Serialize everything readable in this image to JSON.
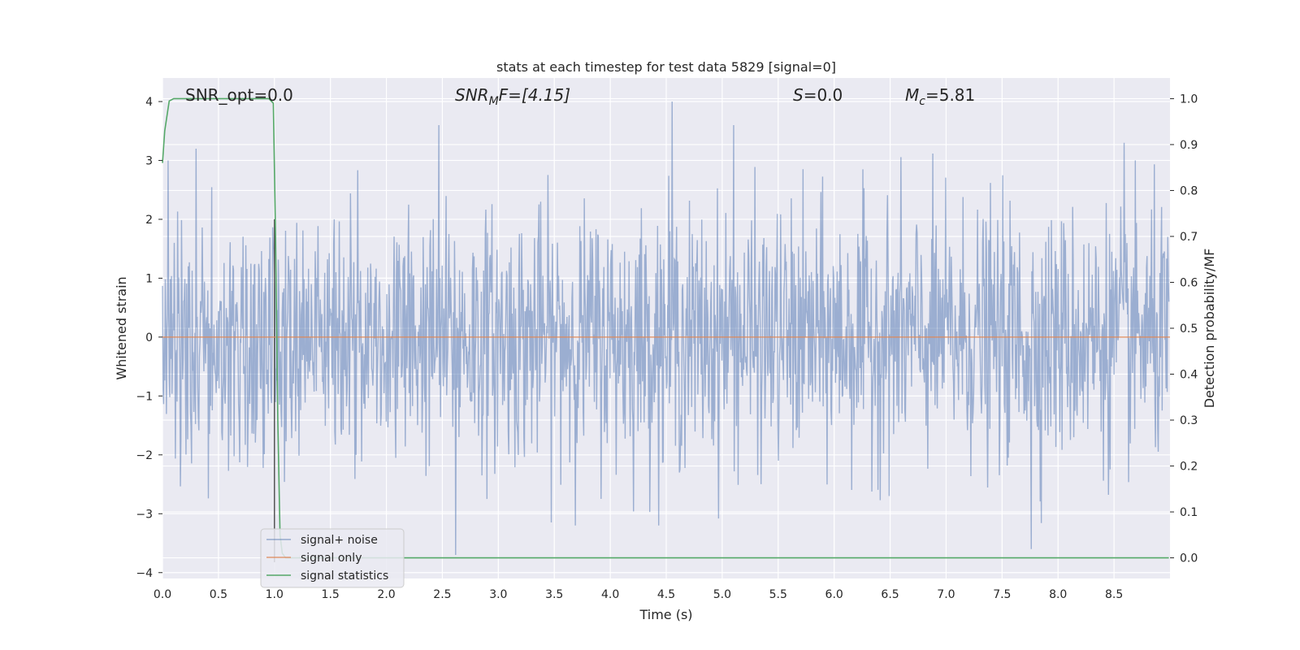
{
  "chart_data": {
    "type": "line",
    "title": "stats at each timestep for test data 5829 [signal=0]",
    "xlabel": "Time (s)",
    "ylabel": "Whitened strain",
    "ylabel_right": "Detection probability/MF",
    "xlim": [
      0.0,
      9.0
    ],
    "ylim": [
      -4.1,
      4.4
    ],
    "ylim_right": [
      -0.045,
      1.045
    ],
    "x_ticks": [
      "0.0",
      "0.5",
      "1.0",
      "1.5",
      "2.0",
      "2.5",
      "3.0",
      "3.5",
      "4.0",
      "4.5",
      "5.0",
      "5.5",
      "6.0",
      "6.5",
      "7.0",
      "7.5",
      "8.0",
      "8.5"
    ],
    "y_ticks": [
      "4",
      "3",
      "2",
      "1",
      "0",
      "−1",
      "−2",
      "−3",
      "−4"
    ],
    "y_ticks_right": [
      "1.0",
      "0.9",
      "0.8",
      "0.7",
      "0.6",
      "0.5",
      "0.4",
      "0.3",
      "0.2",
      "0.1",
      "0.0"
    ],
    "grid": true,
    "legend_position": "lower-left",
    "annotations": {
      "snr_opt": "SNR_opt=0.0",
      "snr_mf_main": "SNR",
      "snr_mf_sub": "M",
      "snr_mf_rest": "F=[4.15]",
      "s_main": "S",
      "s_rest": "=0.0",
      "mc_main": "M",
      "mc_sub": "c",
      "mc_rest": "=5.81"
    },
    "marker_line_x": 1.0,
    "series": [
      {
        "name": "signal+ noise",
        "color": "#4c72b0",
        "description_values": "noise amplitude ~N(0,1), peaks up to 4.0 near t=4.56 and down to -3.7 near t=2.62",
        "sample_count": 1800,
        "peaks": [
          [
            0.05,
            3.0
          ],
          [
            0.3,
            3.2
          ],
          [
            2.47,
            3.6
          ],
          [
            2.62,
            -3.7
          ],
          [
            4.56,
            4.0
          ],
          [
            5.11,
            3.6
          ],
          [
            7.77,
            -3.6
          ],
          [
            8.6,
            3.3
          ]
        ]
      },
      {
        "name": "signal only",
        "color": "#dd8452",
        "x": [
          0.0,
          9.0
        ],
        "y": [
          0.0,
          0.0
        ]
      },
      {
        "name": "signal statistics",
        "color": "#55a868",
        "axis": "right",
        "x": [
          0.0,
          0.02,
          0.06,
          0.1,
          0.2,
          0.4,
          0.6,
          0.8,
          0.95,
          0.99,
          1.01,
          1.03,
          1.05,
          1.07,
          1.1,
          2.0,
          4.0,
          6.0,
          8.0,
          8.99
        ],
        "y": [
          0.86,
          0.93,
          0.995,
          1.0,
          1.0,
          1.0,
          1.0,
          1.0,
          1.0,
          0.99,
          0.7,
          0.3,
          0.05,
          0.01,
          0.0,
          0.0,
          0.0,
          0.0,
          0.0,
          0.0
        ]
      }
    ]
  }
}
